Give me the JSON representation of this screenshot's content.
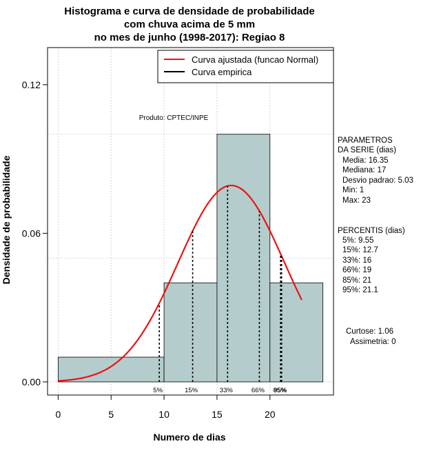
{
  "chart_data": {
    "type": "bar",
    "title_lines": [
      "Histograma e curva de densidade de probabilidade",
      "com chuva acima de 5 mm",
      "no mes de junho (1998-2017): Regiao 8"
    ],
    "xlabel": "Numero de dias",
    "ylabel": "Densidade de probabilidade",
    "xlim": [
      -1,
      26
    ],
    "ylim": [
      -0.0053,
      0.135
    ],
    "x_ticks": [
      0,
      5,
      10,
      15,
      20
    ],
    "x_tick_labels": [
      "0",
      "5",
      "10",
      "15",
      "20"
    ],
    "y_ticks": [
      0.0,
      0.06,
      0.12
    ],
    "y_tick_labels": [
      "0.00",
      "0.06",
      "0.12"
    ],
    "grid_x": [
      0,
      5,
      10,
      15,
      20
    ],
    "grid_y": [
      0,
      0.05,
      0.1
    ],
    "bins": [
      {
        "start": 0,
        "end": 10,
        "density": 0.01
      },
      {
        "start": 10,
        "end": 15,
        "density": 0.04
      },
      {
        "start": 15,
        "end": 20,
        "density": 0.1
      },
      {
        "start": 20,
        "end": 25,
        "density": 0.04
      }
    ],
    "bar_color": "#b4cccc",
    "curve": {
      "type": "normal",
      "mean": 16.35,
      "sd": 5.03,
      "x_range": [
        0,
        23
      ],
      "color": "#ee1111"
    },
    "percentile_lines": [
      {
        "label": "5%",
        "x": 9.55
      },
      {
        "label": "15%",
        "x": 12.7
      },
      {
        "label": "33%",
        "x": 16
      },
      {
        "label": "66%",
        "x": 19
      },
      {
        "label": "95%",
        "x": 21.1
      },
      {
        "label": "85%",
        "x": 21
      }
    ],
    "legend": {
      "position": "top-right",
      "entries": [
        {
          "label": "Curva ajustada (funcao Normal)",
          "color": "#ee1111"
        },
        {
          "label": "Curva empirica",
          "color": "#000000"
        }
      ]
    },
    "annotation": "Produto: CPTEC/INPE",
    "side_panel": {
      "param_title_1": "PARAMETROS",
      "param_title_2": "DA SERIE (dias)",
      "params": [
        "Media: 16.35",
        "Mediana: 17",
        "Desvio padrao: 5.03",
        "Min: 1",
        "Max: 23"
      ],
      "percentis_title": "PERCENTIS (dias)",
      "percentis": [
        "5%: 9.55",
        "15%: 12.7",
        "33%: 16",
        "66%: 19",
        "85%: 21",
        "95%: 21.1"
      ],
      "curtose": "Curtose: 1.06",
      "assimetria": "Assimetria: 0"
    }
  }
}
